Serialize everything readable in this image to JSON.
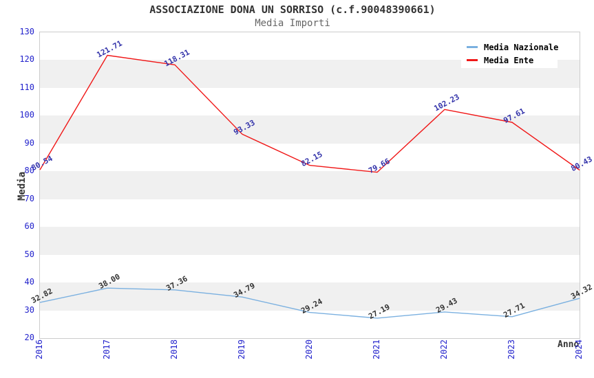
{
  "chart_data": {
    "type": "line",
    "title": "ASSOCIAZIONE DONA UN SORRISO (c.f.90048390661)",
    "subtitle": "Media Importi",
    "xlabel": "Anno",
    "ylabel": "Media",
    "categories": [
      "2016",
      "2017",
      "2018",
      "2019",
      "2020",
      "2021",
      "2022",
      "2023",
      "2024"
    ],
    "series": [
      {
        "name": "Media Nazionale",
        "color": "#7ab0e0",
        "label_color": "#333333",
        "values": [
          32.82,
          38.0,
          37.36,
          34.79,
          29.24,
          27.19,
          29.43,
          27.71,
          34.32
        ]
      },
      {
        "name": "Media Ente",
        "color": "#f01818",
        "label_color": "#3333aa",
        "values": [
          80.54,
          121.71,
          118.31,
          93.33,
          82.15,
          79.66,
          102.23,
          97.61,
          80.43
        ]
      }
    ],
    "ylim": [
      20,
      130
    ],
    "ytick_step": 10,
    "yticks": [
      20,
      30,
      40,
      50,
      60,
      70,
      80,
      90,
      100,
      110,
      120,
      130
    ],
    "legend": {
      "position": "top-right",
      "entries": [
        "Media Nazionale",
        "Media Ente"
      ]
    },
    "grid": "alternating-horizontal-bands",
    "point_label_decimals": 2,
    "colors": {
      "tick_label": "#2222cc",
      "band_gray": "#f0f0f0",
      "band_white": "#ffffff",
      "plot_border": "#cccccc",
      "title": "#333333",
      "subtitle": "#666666",
      "axis_title": "#333333",
      "legend_text": "#000000",
      "legend_bg": "#ffffff"
    }
  }
}
